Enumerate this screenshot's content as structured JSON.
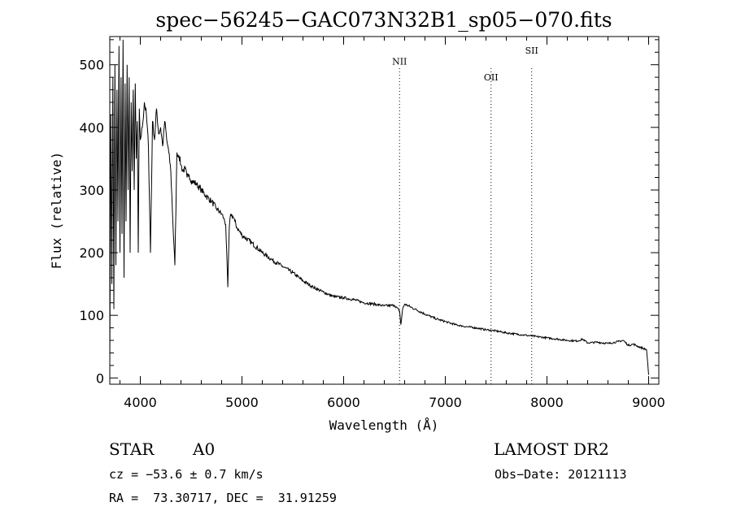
{
  "chart_data": {
    "type": "line",
    "title": "spec−56245−GAC073N32B1_sp05−070.fits",
    "xlabel": "Wavelength (Å)",
    "ylabel": "Flux (relative)",
    "xlim": [
      3700,
      9100
    ],
    "ylim": [
      -10,
      545
    ],
    "x_ticks": [
      4000,
      5000,
      6000,
      7000,
      8000,
      9000
    ],
    "y_ticks": [
      0,
      100,
      200,
      300,
      400,
      500
    ],
    "grid": false,
    "series": [
      {
        "x": [
          3700,
          3710,
          3720,
          3730,
          3740,
          3750,
          3760,
          3770,
          3780,
          3790,
          3800,
          3810,
          3820,
          3830,
          3840,
          3850,
          3860,
          3870,
          3880,
          3890,
          3900,
          3910,
          3920,
          3930,
          3940,
          3950,
          3960,
          3970,
          3980,
          3990,
          4000,
          4020,
          4040,
          4060,
          4080,
          4100,
          4120,
          4140,
          4160,
          4180,
          4200,
          4220,
          4240,
          4260,
          4280,
          4300,
          4320,
          4340,
          4360,
          4380,
          4400,
          4420,
          4440,
          4460,
          4480,
          4500,
          4550,
          4600,
          4650,
          4700,
          4750,
          4800,
          4820,
          4840,
          4850,
          4861,
          4875,
          4890,
          4910,
          4930,
          4950,
          5000,
          5100,
          5200,
          5300,
          5400,
          5500,
          5600,
          5700,
          5800,
          5900,
          6000,
          6100,
          6200,
          6300,
          6400,
          6500,
          6550,
          6563,
          6580,
          6600,
          6700,
          6800,
          6900,
          7000,
          7100,
          7200,
          7300,
          7400,
          7500,
          7600,
          7700,
          7800,
          7900,
          8000,
          8100,
          8200,
          8300,
          8350,
          8400,
          8500,
          8600,
          8700,
          8750,
          8800,
          8850,
          8900,
          8950,
          8980,
          9000
        ],
        "y": [
          20,
          420,
          150,
          480,
          110,
          500,
          180,
          460,
          250,
          530,
          200,
          480,
          230,
          540,
          160,
          470,
          250,
          500,
          300,
          480,
          200,
          440,
          330,
          460,
          300,
          470,
          350,
          410,
          200,
          430,
          380,
          400,
          440,
          420,
          370,
          200,
          410,
          380,
          430,
          390,
          400,
          370,
          410,
          380,
          360,
          330,
          250,
          180,
          360,
          355,
          340,
          330,
          335,
          320,
          325,
          315,
          310,
          300,
          290,
          282,
          270,
          262,
          255,
          245,
          200,
          145,
          240,
          262,
          258,
          250,
          240,
          228,
          215,
          200,
          188,
          178,
          168,
          155,
          145,
          137,
          130,
          128,
          125,
          120,
          118,
          115,
          116,
          107,
          85,
          110,
          118,
          110,
          102,
          95,
          90,
          85,
          82,
          80,
          77,
          75,
          72,
          70,
          68,
          66,
          64,
          62,
          60,
          59,
          62,
          56,
          57,
          55,
          58,
          60,
          52,
          54,
          50,
          47,
          45,
          5
        ]
      }
    ],
    "annotations": [
      {
        "label": "NII",
        "x": 6550,
        "y": 500
      },
      {
        "label": "OII",
        "x": 7450,
        "y": 475
      },
      {
        "label": "SII",
        "x": 7850,
        "y": 518
      }
    ]
  },
  "info": {
    "object_type": "STAR",
    "subclass": "A0",
    "survey": "LAMOST DR2",
    "cz": "cz = −53.6 ± 0.7 km/s",
    "obs_date": "Obs−Date: 20121113",
    "coords": "RA =  73.30717, DEC =  31.91259"
  }
}
